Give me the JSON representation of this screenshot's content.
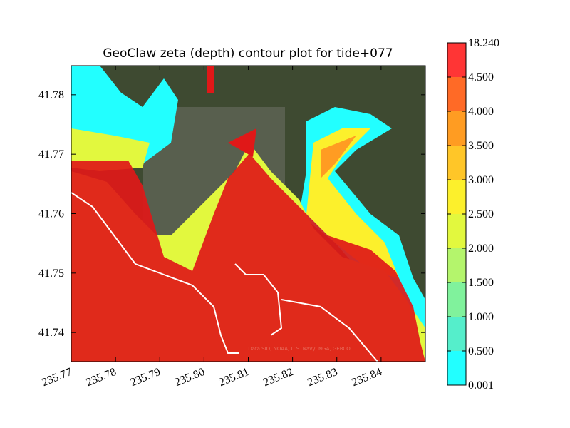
{
  "chart_data": {
    "type": "contour",
    "title": "GeoClaw zeta (depth) contour plot for tide+077",
    "attribution": "Data SIO, NOAA, U.S. Navy, NGA, GEBCO",
    "xlim": [
      235.77,
      235.85
    ],
    "ylim": [
      41.7351,
      41.7849
    ],
    "xticks": [
      235.77,
      235.78,
      235.79,
      {
        "value": 235.8,
        "label": "235.80"
      },
      235.81,
      235.82,
      235.83,
      235.84
    ],
    "yticks": [
      41.74,
      41.75,
      41.76,
      41.77,
      41.78
    ],
    "levels": [
      {
        "value": 0.001,
        "label": "0.001"
      },
      {
        "value": 0.5,
        "label": "0.500"
      },
      {
        "value": 1,
        "label": "1.000"
      },
      {
        "value": 1.5,
        "label": "1.500"
      },
      {
        "value": 2,
        "label": "2.000"
      },
      {
        "value": 2.5,
        "label": "2.500"
      },
      {
        "value": 3,
        "label": "3.000"
      },
      {
        "value": 3.5,
        "label": "3.500"
      },
      {
        "value": 4,
        "label": "4.000"
      },
      {
        "value": 4.5,
        "label": "4.500"
      },
      {
        "value": 18.24,
        "label": "18.240"
      }
    ],
    "colors": [
      "#22ffff",
      "#55eecb",
      "#80f29c",
      "#b4f56c",
      "#e2f83e",
      "#fcf02c",
      "#ffc628",
      "#ff9c22",
      "#ff6a26",
      "#ff3535"
    ]
  }
}
